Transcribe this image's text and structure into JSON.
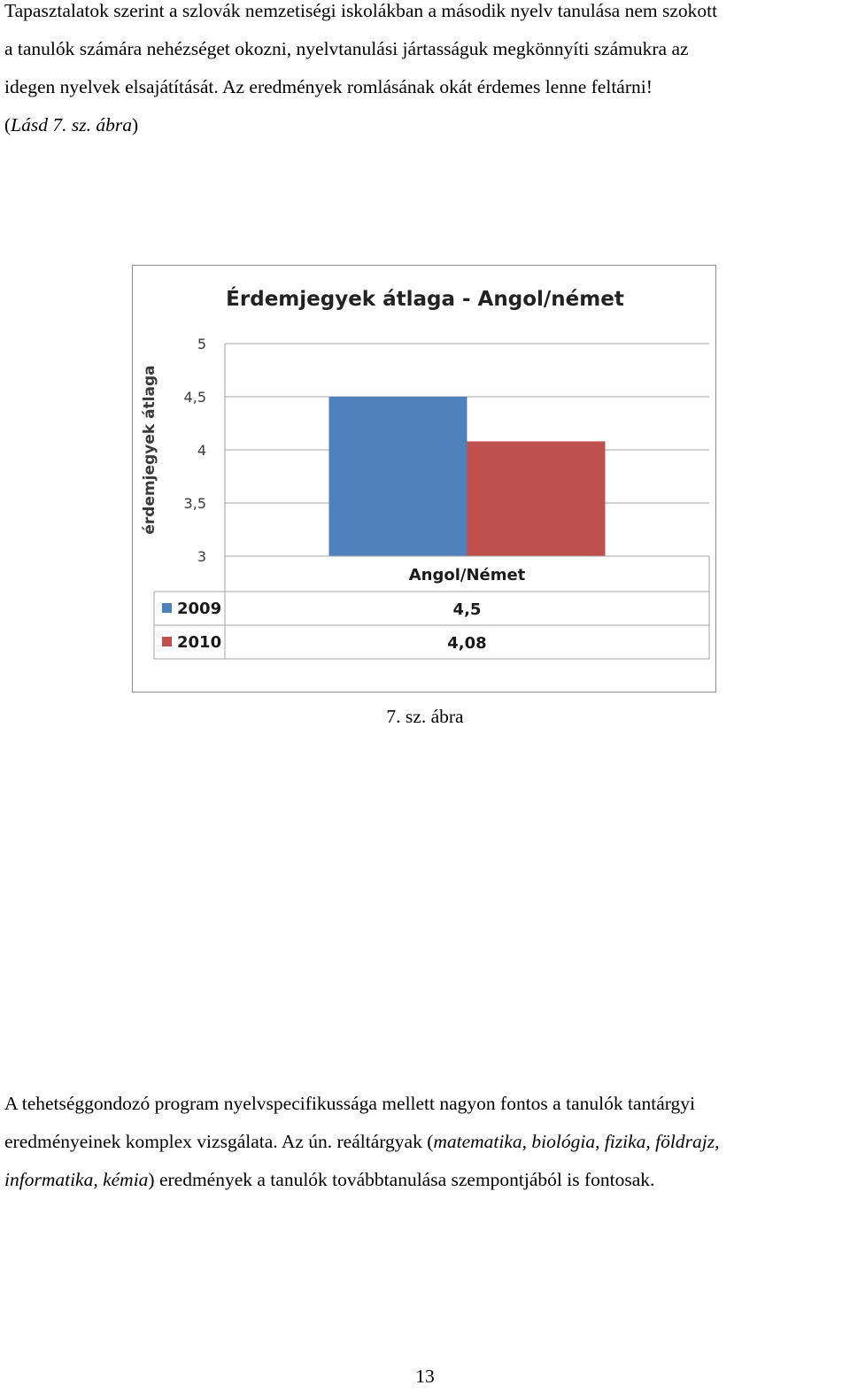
{
  "paragraph1": {
    "line1": "Tapasztalatok szerint a szlovák nemzetiségi iskolákban a második nyelv tanulása nem szokott",
    "line2": "a tanulók számára nehézséget okozni, nyelvtanulási jártasságuk megkönnyíti számukra az",
    "line3": "idegen nyelvek elsajátítását. Az eredmények romlásának okát érdemes lenne feltárni!",
    "ref_open": "(",
    "ref_italic": "Lásd 7. sz. ábra",
    "ref_close": ")"
  },
  "chart_data": {
    "type": "bar",
    "title": "Érdemjegyek átlaga - Angol/német",
    "ylabel": "érdemjegyek átlaga",
    "xlabel": "",
    "categories": [
      "Angol/Német"
    ],
    "series": [
      {
        "name": "2009",
        "values": [
          4.5
        ],
        "color": "#4f81bd"
      },
      {
        "name": "2010",
        "values": [
          4.08
        ],
        "color": "#c0504d"
      }
    ],
    "ylim": [
      3,
      5
    ],
    "yticks": [
      3,
      3.5,
      4,
      4.5,
      5
    ],
    "ytick_labels": [
      "3",
      "3,5",
      "4",
      "4,5",
      "5"
    ],
    "table_values": [
      "4,5",
      "4,08"
    ],
    "grid": true,
    "legend": "data-table"
  },
  "caption": "7. sz. ábra",
  "paragraph2": {
    "line1": "A tehetséggondozó program nyelvspecifikussága mellett nagyon fontos a tanulók tantárgyi",
    "line2": "eredményeinek komplex vizsgálata. Az ún. reáltárgyak (",
    "line2_italic": "matematika, biológia, fizika, földrajz,",
    "line3_italic": "informatika, kémia",
    "line3": ") eredmények a tanulók továbbtanulása szempontjából is fontosak."
  },
  "page_number": "13"
}
